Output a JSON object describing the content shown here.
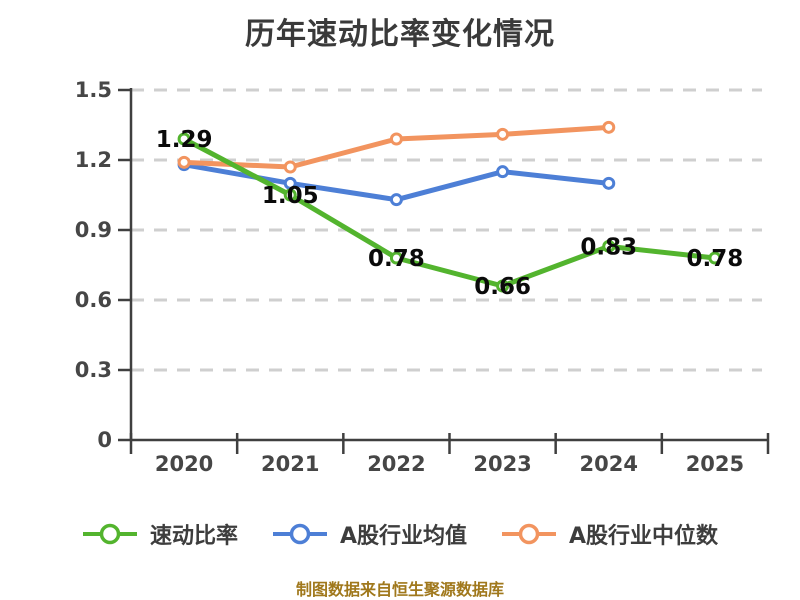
{
  "title": "历年速动比率变化情况",
  "footer_note": "制图数据来自恒生聚源数据库",
  "colors": {
    "background": "#ffffff",
    "title_text": "#3a3a3a",
    "axis_line": "#3f3f3f",
    "axis_label": "#464646",
    "gridline": "#cfcfcf",
    "data_label": "#0a0a0a",
    "marker_fill": "#ffffff",
    "legend_text": "#3d3d3d",
    "footer_text": "#a0781c"
  },
  "chart_data": {
    "type": "line",
    "title": "历年速动比率变化情况",
    "categories": [
      "2020",
      "2021",
      "2022",
      "2023",
      "2024",
      "2025"
    ],
    "series": [
      {
        "name": "速动比率",
        "color": "#53b42e",
        "values": [
          1.29,
          1.05,
          0.78,
          0.66,
          0.83,
          0.78
        ],
        "labels": [
          "1.29",
          "1.05",
          "0.78",
          "0.66",
          "0.83",
          "0.78"
        ],
        "show_labels": true
      },
      {
        "name": "A股行业均值",
        "color": "#4d7fd6",
        "values": [
          1.18,
          1.1,
          1.03,
          1.15,
          1.1,
          null
        ],
        "show_labels": false
      },
      {
        "name": "A股行业中位数",
        "color": "#f2945f",
        "values": [
          1.19,
          1.17,
          1.29,
          1.31,
          1.34,
          null
        ],
        "show_labels": false
      }
    ],
    "xlabel": "",
    "ylabel": "",
    "ylim": [
      0,
      1.5
    ],
    "yticks": [
      0,
      0.3,
      0.6,
      0.9,
      1.2,
      1.5
    ],
    "ytick_labels": [
      "0",
      "0.3",
      "0.6",
      "0.9",
      "1.2",
      "1.5"
    ],
    "grid": true,
    "grid_style": "dashed",
    "legend_position": "bottom"
  }
}
